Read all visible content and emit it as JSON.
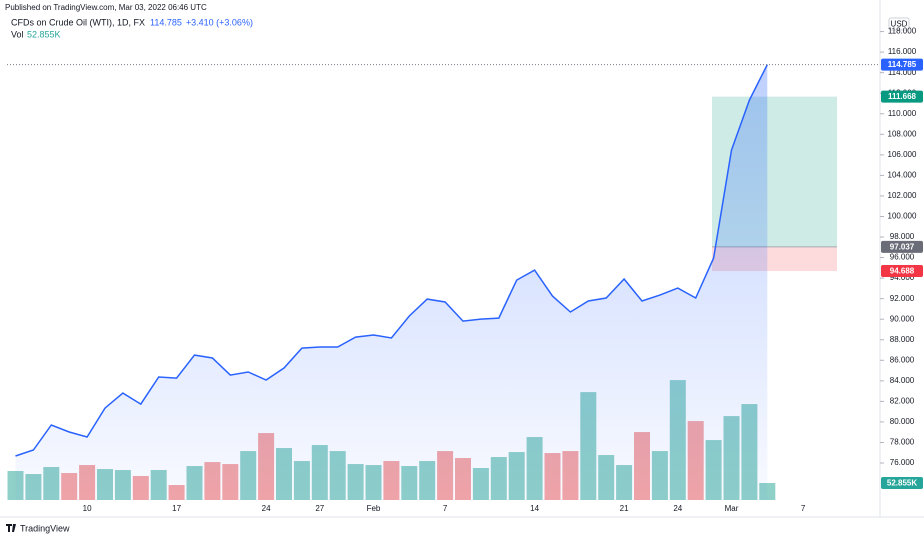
{
  "header": {
    "published": "Published on TradingView.com, Mar 03, 2022 06:46 UTC"
  },
  "footer": {
    "brand": "TradingView"
  },
  "chart_data": {
    "type": "line",
    "currency": "USD",
    "change": "+3.410 (+3.06%)",
    "grid": false,
    "categories": [
      null,
      null,
      null,
      null,
      "10",
      null,
      null,
      null,
      null,
      "17",
      null,
      null,
      null,
      null,
      "24",
      null,
      null,
      "27",
      null,
      null,
      "Feb",
      null,
      null,
      null,
      "7",
      null,
      null,
      null,
      null,
      "14",
      null,
      null,
      null,
      null,
      "21",
      null,
      null,
      "24",
      null,
      null,
      "Mar",
      null,
      null,
      null,
      "7"
    ],
    "series": [
      {
        "name": "CFDs on Crude Oil (WTI), 1D, FX",
        "type": "line",
        "color": "#2962ff",
        "values": [
          76.68,
          77.27,
          79.7,
          79.02,
          78.53,
          81.35,
          82.81,
          81.74,
          84.37,
          84.27,
          86.51,
          86.22,
          84.56,
          84.86,
          84.08,
          85.25,
          87.19,
          87.29,
          87.29,
          88.26,
          88.46,
          88.17,
          90.31,
          91.96,
          91.67,
          89.82,
          90.01,
          90.11,
          93.81,
          94.78,
          92.25,
          90.7,
          91.77,
          92.06,
          93.91,
          91.77,
          92.35,
          93.03,
          92.06,
          95.95,
          106.46,
          111.33,
          114.785,
          null,
          null
        ]
      },
      {
        "name": "Vol",
        "type": "bar",
        "axis": "y2",
        "up_color": "#8fd0c8",
        "down_color": "#f4a5a5",
        "label_color": "#26a69a",
        "values": [
          90.2,
          80.8,
          102.6,
          83.9,
          108.8,
          96.4,
          93.3,
          74.6,
          93.3,
          46.6,
          105.7,
          118.1,
          111.9,
          152.3,
          208.3,
          161.7,
          121.3,
          171.0,
          152.3,
          111.9,
          108.8,
          121.3,
          105.7,
          121.3,
          152.3,
          130.6,
          99.5,
          133.7,
          149.2,
          195.9,
          146.1,
          152.3,
          335.8,
          139.9,
          108.8,
          211.4,
          152.3,
          373.1,
          245.6,
          186.5,
          261.2,
          298.5,
          52.855,
          null,
          null
        ],
        "value_labels": [
          null,
          null,
          null,
          null,
          null,
          null,
          null,
          null,
          null,
          null,
          null,
          null,
          null,
          null,
          null,
          null,
          null,
          null,
          null,
          null,
          null,
          null,
          null,
          null,
          null,
          null,
          null,
          null,
          null,
          null,
          null,
          null,
          null,
          null,
          null,
          null,
          null,
          null,
          null,
          null,
          null,
          null,
          "52.855K",
          null,
          null
        ]
      }
    ],
    "position": {
      "target": 111.668,
      "entry": 97.037,
      "stop": 94.688,
      "target_color": "#089981",
      "entry_color": "#6a6d78",
      "stop_color": "#f23645"
    },
    "ylim": [
      72.4,
      120.1
    ],
    "yticks": [
      {
        "value": 76,
        "label": "76.000"
      },
      {
        "value": 78,
        "label": "78.000"
      },
      {
        "value": 80,
        "label": "80.000"
      },
      {
        "value": 82,
        "label": "82.000"
      },
      {
        "value": 84,
        "label": "84.000"
      },
      {
        "value": 86,
        "label": "86.000"
      },
      {
        "value": 88,
        "label": "88.000"
      },
      {
        "value": 90,
        "label": "90.000"
      },
      {
        "value": 92,
        "label": "92.000"
      },
      {
        "value": 94,
        "label": "94.000"
      },
      {
        "value": 96,
        "label": "96.000"
      },
      {
        "value": 98,
        "label": "98.000"
      },
      {
        "value": 100,
        "label": "100.000"
      },
      {
        "value": 102,
        "label": "102.000"
      },
      {
        "value": 104,
        "label": "104.000"
      },
      {
        "value": 106,
        "label": "106.000"
      },
      {
        "value": 108,
        "label": "108.000"
      },
      {
        "value": 110,
        "label": "110.000"
      },
      {
        "value": 112,
        "label": "112.000"
      },
      {
        "value": 114,
        "label": "114.000"
      },
      {
        "value": 116,
        "label": "116.000"
      },
      {
        "value": 118,
        "label": "118.000"
      }
    ],
    "y2lim": [
      0,
      1500
    ]
  }
}
